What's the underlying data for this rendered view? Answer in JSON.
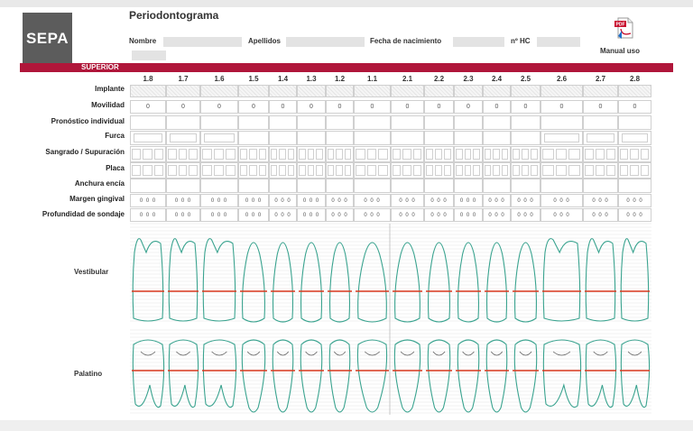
{
  "header": {
    "logo": "SEPA",
    "title": "Periodontograma",
    "fields": [
      {
        "label": "Nombre",
        "value": ""
      },
      {
        "label": "Apellidos",
        "value": ""
      },
      {
        "label": "Fecha de nacimiento",
        "value": ""
      },
      {
        "label": "nº HC",
        "value": ""
      }
    ],
    "manual_label": "Manual uso",
    "pdf_icon": "pdf-document-icon",
    "pdf_text": "PDF"
  },
  "section": {
    "label": "SUPERIOR",
    "accent": "#b0163a"
  },
  "teeth": [
    "1.8",
    "1.7",
    "1.6",
    "1.5",
    "1.4",
    "1.3",
    "1.2",
    "1.1",
    "2.1",
    "2.2",
    "2.3",
    "2.4",
    "2.5",
    "2.6",
    "2.7",
    "2.8"
  ],
  "rows": {
    "implante": "Implante",
    "movilidad": "Movilidad",
    "pronostico": "Pronóstico individual",
    "furca": "Furca",
    "sangrado": "Sangrado / Supuración",
    "placa": "Placa",
    "anchura": "Anchura encía",
    "margen": "Margen gingival",
    "profundidad": "Profundidad de sondaje"
  },
  "movilidad_values": [
    "0",
    "0",
    "0",
    "0",
    "0",
    "0",
    "0",
    "0",
    "0",
    "0",
    "0",
    "0",
    "0",
    "0",
    "0",
    "0"
  ],
  "margen_values": [
    "0 0 0",
    "0 0 0",
    "0 0 0",
    "0 0 0",
    "0 0 0",
    "0 0 0",
    "0 0 0",
    "0 0 0",
    "0 0 0",
    "0 0 0",
    "0 0 0",
    "0 0 0",
    "0 0 0",
    "0 0 0",
    "0 0 0",
    "0 0 0"
  ],
  "profundidad_values": [
    "0 0 0",
    "0 0 0",
    "0 0 0",
    "0 0 0",
    "0 0 0",
    "0 0 0",
    "0 0 0",
    "0 0 0",
    "0 0 0",
    "0 0 0",
    "0 0 0",
    "0 0 0",
    "0 0 0",
    "0 0 0",
    "0 0 0",
    "0 0 0"
  ],
  "views": {
    "vestibular": "Vestibular",
    "palatino": "Palatino"
  },
  "colors": {
    "tooth_outline": "#3aa38f",
    "gingival_line": "#d9381e",
    "grid": "#d0d0d0"
  }
}
